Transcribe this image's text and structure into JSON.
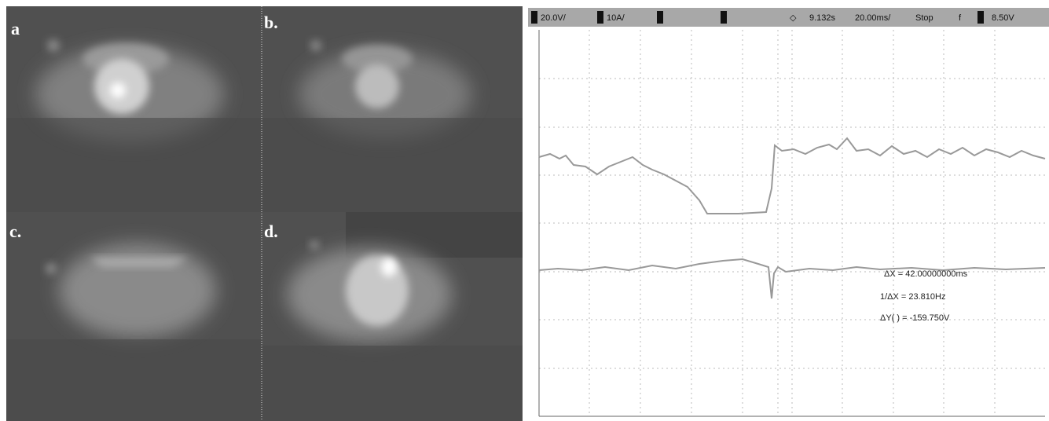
{
  "panels": {
    "a": "a",
    "b": "b.",
    "c": "c.",
    "d": "d."
  },
  "scope": {
    "header": [
      "20.0V/",
      "10A/",
      "9.132s",
      "20.00ms/",
      "Stop",
      "f",
      "8.50V"
    ],
    "measurements": [
      "ΔX = 42.00000000ms",
      "1/ΔX = 23.810Hz",
      "ΔY( ) = -159.750V"
    ]
  }
}
